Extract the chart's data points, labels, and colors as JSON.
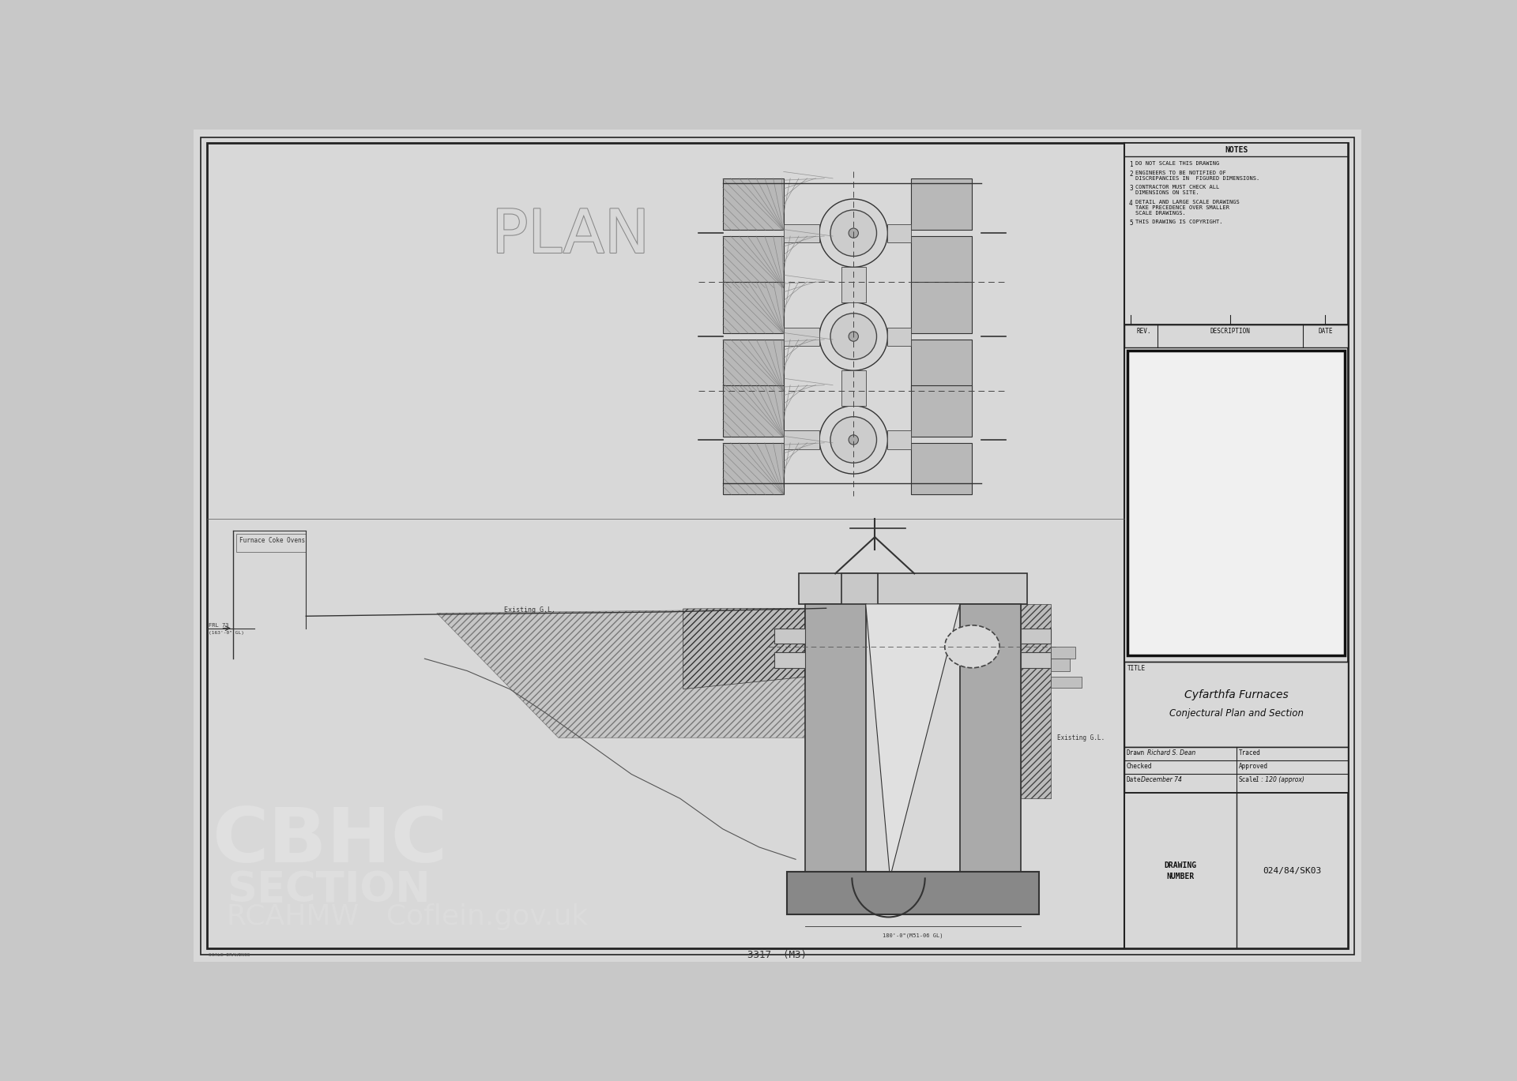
{
  "bg_color": "#c8c8c8",
  "paper_color": "#d2d2d2",
  "inner_color": "#d8d8d8",
  "border_color": "#222222",
  "title_block": {
    "notes_title": "NOTES",
    "notes": [
      [
        "1",
        "DO NOT SCALE THIS DRAWING"
      ],
      [
        "2",
        "ENGINEERS TO BE NOTIFIED OF\n     DISCREPANCIES IN  FIGURED DIMENSIONS."
      ],
      [
        "3",
        "CONTRACTOR MUST CHECK ALL\n     DIMENSIONS ON SITE."
      ],
      [
        "4",
        "DETAIL AND LARGE SCALE DRAWINGS\n     TAKE PRECEDENCE OVER SMALLER\n     SCALE DRAWINGS."
      ],
      [
        "5",
        "THIS DRAWING IS COPYRIGHT."
      ]
    ],
    "rev_label": "REV.",
    "description_label": "DESCRIPTION",
    "date_label": "DATE",
    "title_label": "TITLE",
    "drawing_title_line1": "Cyfarthfa Furnaces",
    "drawing_title_line2": "Conjectural Plan and Section",
    "drawn_label": "Drawn",
    "drawn_value": "Richard S. Dean",
    "traced_label": "Traced",
    "checked_label": "Checked",
    "approved_label": "Approved",
    "date_field_label": "Date",
    "date_field_value": "December 74",
    "scale_label": "Scale",
    "scale_value": "1 : 120 (approx)",
    "drawing_number_label": "DRAWING\nNUMBER",
    "drawing_number": "024/84/SK03"
  },
  "plan_label": "PLAN",
  "drawing_number_bottom": "3317  (M3)"
}
